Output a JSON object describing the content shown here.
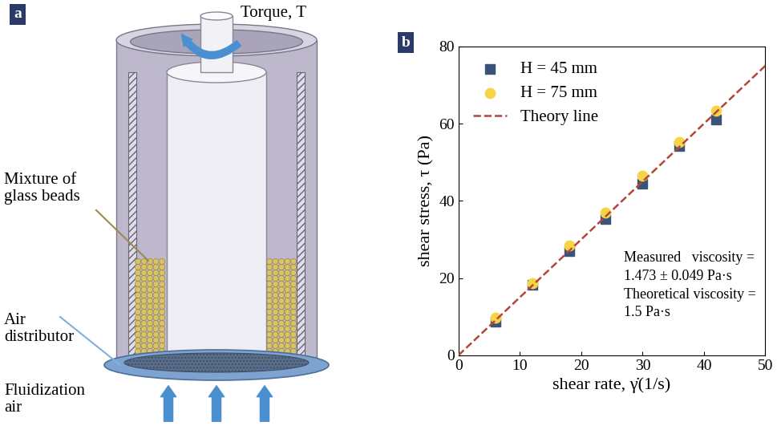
{
  "diagram": {
    "panel_label": "a",
    "labels": {
      "torque": "Torque, T",
      "beads": "Mixture of\nglass beads",
      "distributor": "Air\ndistributor",
      "air": "Fluidization\nair"
    }
  },
  "chart_data": {
    "type": "scatter",
    "panel_label": "b",
    "xlabel": "shear rate, γ̇(1/s)",
    "ylabel": "shear stress, τ (Pa)",
    "x": [
      6,
      12,
      18,
      24,
      30,
      36,
      42
    ],
    "series": [
      {
        "name": "H = 45 mm",
        "type": "scatter",
        "color": "#3b5378",
        "marker": "square",
        "values": [
          8.7,
          18.3,
          27.0,
          35.3,
          44.5,
          54.3,
          61.0
        ]
      },
      {
        "name": "H = 75 mm",
        "type": "scatter",
        "color": "#f5d547",
        "marker": "circle",
        "values": [
          9.8,
          18.6,
          28.4,
          36.9,
          46.6,
          55.2,
          63.4
        ]
      },
      {
        "name": "Theory line",
        "type": "line",
        "color": "#b5453a",
        "line_style": "dashed",
        "x": [
          0,
          50
        ],
        "values": [
          0,
          75
        ]
      }
    ],
    "annotations": [
      "Measured   viscosity =\n1.473 ± 0.049 Pa·s\nTheoretical viscosity =\n1.5 Pa·s"
    ],
    "xlim": [
      0,
      50
    ],
    "xticks": [
      0,
      10,
      20,
      30,
      40,
      50
    ],
    "ylim": [
      0,
      80
    ],
    "yticks": [
      0,
      20,
      40,
      60,
      80
    ],
    "legend": "upper left"
  }
}
